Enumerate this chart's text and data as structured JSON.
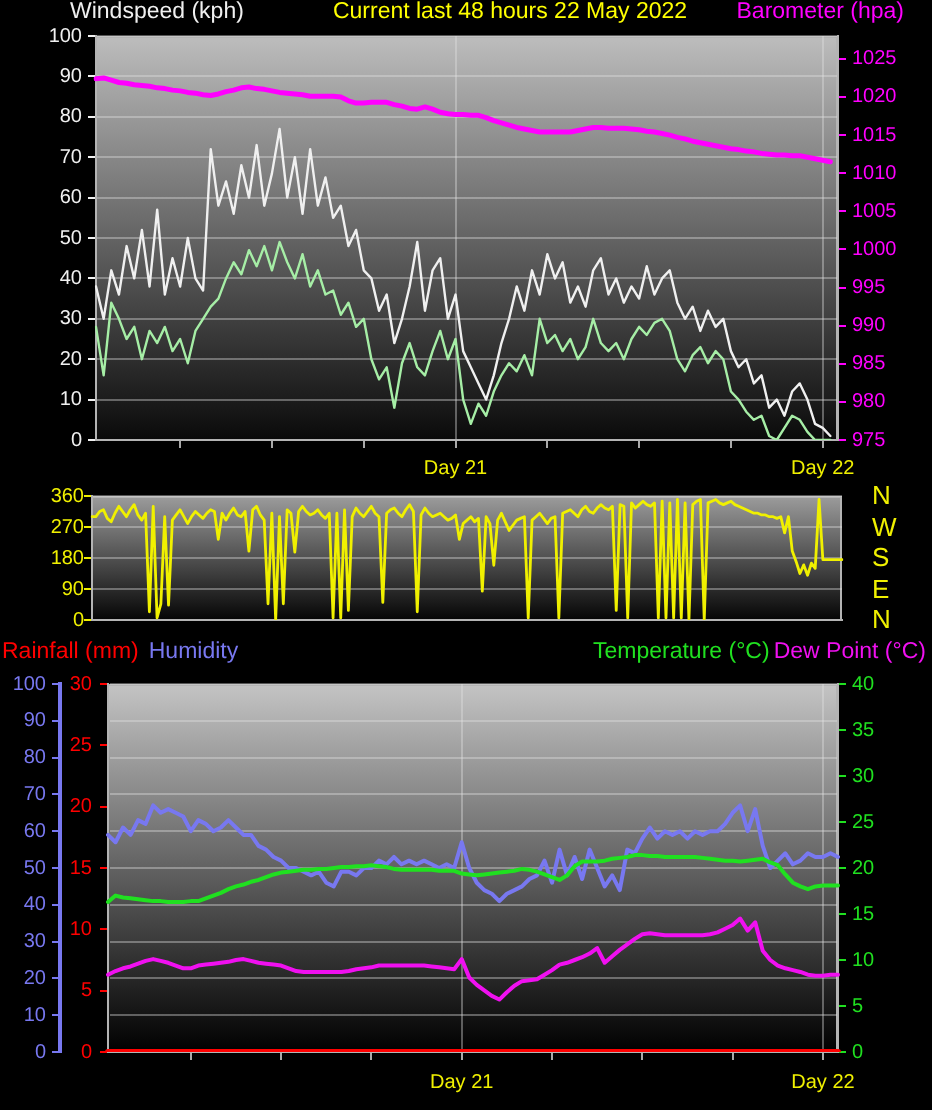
{
  "chart_data": [
    {
      "type": "line",
      "title": "Current last 48 hours 22 May 2022",
      "ylabel": "Windspeed (kph)",
      "y2label": "Barometer (hpa)",
      "categories": [
        null,
        null,
        null,
        null,
        null,
        null,
        null,
        null,
        null,
        null,
        null,
        null,
        null,
        null,
        null,
        null,
        null,
        null,
        null,
        null,
        null,
        null,
        null,
        null,
        null,
        null,
        null,
        null,
        null,
        null,
        null,
        null,
        null,
        null,
        null,
        null,
        null,
        null,
        null,
        null,
        null,
        null,
        null,
        null,
        null,
        null,
        null,
        "Day 21",
        null,
        null,
        null,
        null,
        null,
        null,
        null,
        null,
        null,
        null,
        null,
        null,
        null,
        null,
        null,
        null,
        null,
        null,
        null,
        null,
        null,
        null,
        null,
        null,
        null,
        null,
        null,
        null,
        null,
        null,
        null,
        null,
        null,
        null,
        null,
        null,
        null,
        null,
        null,
        null,
        null,
        null,
        null,
        null,
        null,
        null,
        null,
        "Day 22",
        null,
        null
      ],
      "ylim": [
        0,
        100
      ],
      "yticks": [
        0,
        10,
        20,
        30,
        40,
        50,
        60,
        70,
        80,
        90,
        100
      ],
      "y2lim": [
        975,
        1028
      ],
      "y2ticks": [
        975,
        980,
        985,
        990,
        995,
        1000,
        1005,
        1010,
        1015,
        1020,
        1025
      ],
      "grid": true,
      "series": [
        {
          "color": "#f0f0f0",
          "values": [
            38,
            30,
            42,
            36,
            48,
            40,
            52,
            38,
            57,
            36,
            45,
            38,
            50,
            40,
            37,
            72,
            58,
            64,
            56,
            68,
            60,
            73,
            58,
            66,
            77,
            60,
            70,
            56,
            72,
            58,
            65,
            55,
            58,
            48,
            52,
            42,
            40,
            32,
            36,
            24,
            30,
            38,
            49,
            32,
            42,
            45,
            30,
            36,
            22,
            18,
            14,
            10,
            16,
            24,
            30,
            38,
            32,
            42,
            36,
            46,
            40,
            44,
            34,
            38,
            33,
            42,
            45,
            36,
            40,
            34,
            38,
            35,
            43,
            36,
            40,
            42,
            34,
            30,
            33,
            27,
            32,
            28,
            30,
            22,
            18,
            20,
            14,
            16,
            8,
            10,
            6,
            12,
            14,
            10,
            4,
            3,
            1,
            null
          ]
        },
        {
          "color": "#a6eea6",
          "values": [
            28,
            16,
            34,
            30,
            25,
            28,
            20,
            27,
            24,
            28,
            22,
            25,
            19,
            27,
            30,
            33,
            35,
            40,
            44,
            41,
            47,
            43,
            48,
            42,
            49,
            44,
            40,
            46,
            38,
            42,
            36,
            37,
            31,
            34,
            28,
            30,
            20,
            15,
            18,
            8,
            19,
            24,
            18,
            16,
            22,
            27,
            20,
            25,
            10,
            4,
            9,
            6,
            12,
            16,
            19,
            17,
            21,
            16,
            30,
            24,
            26,
            22,
            25,
            20,
            23,
            30,
            24,
            22,
            24,
            20,
            25,
            28,
            26,
            29,
            30,
            27,
            20,
            17,
            21,
            23,
            19,
            22,
            20,
            12,
            10,
            7,
            5,
            6,
            1,
            0,
            3,
            6,
            5,
            2,
            0,
            0,
            0,
            null
          ]
        },
        {
          "color": "#ff00ff",
          "axis": "y2",
          "values": [
            1022.4,
            1022.5,
            1022.2,
            1021.9,
            1021.8,
            1021.6,
            1021.5,
            1021.4,
            1021.2,
            1021.1,
            1020.9,
            1020.8,
            1020.6,
            1020.5,
            1020.3,
            1020.2,
            1020.4,
            1020.7,
            1020.9,
            1021.2,
            1021.3,
            1021.1,
            1021.0,
            1020.8,
            1020.6,
            1020.5,
            1020.4,
            1020.3,
            1020.1,
            1020.1,
            1020.1,
            1020.1,
            1020.0,
            1019.5,
            1019.2,
            1019.2,
            1019.3,
            1019.3,
            1019.3,
            1019.0,
            1018.8,
            1018.5,
            1018.4,
            1018.7,
            1018.4,
            1018.0,
            1017.8,
            1017.7,
            1017.7,
            1017.6,
            1017.6,
            1017.3,
            1016.9,
            1016.6,
            1016.3,
            1016.0,
            1015.8,
            1015.6,
            1015.4,
            1015.4,
            1015.4,
            1015.4,
            1015.4,
            1015.6,
            1015.8,
            1016.0,
            1016.0,
            1015.9,
            1015.9,
            1015.9,
            1015.8,
            1015.7,
            1015.5,
            1015.4,
            1015.2,
            1015.0,
            1014.7,
            1014.5,
            1014.2,
            1014.0,
            1013.8,
            1013.6,
            1013.4,
            1013.2,
            1013.1,
            1012.9,
            1012.8,
            1012.6,
            1012.5,
            1012.4,
            1012.4,
            1012.3,
            1012.3,
            1012.1,
            1011.9,
            1011.7,
            1011.5,
            null
          ]
        }
      ]
    },
    {
      "type": "line",
      "annotations": [
        "N",
        "W",
        "S",
        "E",
        "N"
      ],
      "categories": [
        null,
        null,
        null,
        null,
        null,
        null,
        null,
        null,
        null,
        null,
        null,
        null,
        null,
        null,
        null,
        null,
        null,
        null,
        null,
        null,
        null,
        null,
        null,
        null,
        null,
        null,
        null,
        null,
        null,
        null,
        null,
        null,
        null,
        null,
        null,
        null,
        null,
        null,
        null,
        null,
        null,
        null,
        null,
        null,
        null,
        null,
        null,
        null,
        null,
        null,
        null,
        null,
        null,
        null,
        null,
        null,
        null,
        null,
        null,
        null,
        null,
        null,
        null,
        null,
        null,
        null,
        null,
        null,
        null,
        null,
        null,
        null,
        null,
        null,
        null,
        null,
        null,
        null,
        null,
        null,
        null,
        null,
        null,
        null,
        null,
        null,
        null,
        null,
        null,
        null,
        null,
        null,
        null,
        null,
        null,
        null,
        null,
        null,
        null,
        null,
        null,
        null,
        null,
        null,
        null,
        null,
        null,
        null,
        null,
        null,
        null,
        null,
        null,
        null,
        null,
        null,
        null,
        null,
        null,
        null,
        null,
        null,
        null,
        null,
        null,
        null,
        null,
        null,
        null,
        null,
        null,
        null,
        null,
        null,
        null,
        null,
        null,
        null,
        null,
        null,
        null,
        null,
        null,
        null,
        null,
        null,
        null,
        null,
        null,
        null,
        null,
        null,
        null,
        null,
        null,
        null,
        null,
        null,
        null,
        null,
        null,
        null,
        null,
        null,
        null,
        null,
        null,
        null,
        null,
        null,
        null,
        null,
        null,
        null,
        null,
        null,
        null,
        null,
        null,
        null,
        null,
        null,
        null,
        null,
        null,
        null,
        null,
        null,
        null,
        null,
        null,
        null,
        null,
        null,
        null,
        null,
        null
      ],
      "ylim": [
        0,
        360
      ],
      "yticks": [
        0,
        90,
        180,
        270,
        360
      ],
      "grid": "y",
      "series": [
        {
          "color": "#f0f000",
          "values": [
            300,
            300,
            315,
            320,
            295,
            285,
            310,
            330,
            315,
            300,
            320,
            335,
            305,
            290,
            310,
            24,
            330,
            6,
            47,
            300,
            43,
            290,
            305,
            320,
            300,
            280,
            300,
            315,
            305,
            295,
            310,
            320,
            315,
            234,
            310,
            290,
            310,
            325,
            305,
            300,
            315,
            200,
            320,
            330,
            305,
            290,
            47,
            310,
            0,
            300,
            47,
            320,
            310,
            197,
            315,
            330,
            315,
            305,
            310,
            320,
            305,
            295,
            310,
            6,
            310,
            6,
            320,
            28,
            300,
            325,
            310,
            300,
            315,
            330,
            310,
            300,
            51,
            310,
            320,
            325,
            310,
            300,
            320,
            335,
            315,
            24,
            305,
            325,
            310,
            300,
            305,
            310,
            300,
            290,
            295,
            305,
            234,
            280,
            290,
            300,
            285,
            295,
            84,
            300,
            280,
            159,
            290,
            310,
            285,
            260,
            275,
            290,
            295,
            300,
            6,
            290,
            300,
            310,
            295,
            280,
            295,
            300,
            6,
            310,
            315,
            320,
            310,
            300,
            320,
            330,
            315,
            310,
            325,
            335,
            325,
            320,
            330,
            28,
            335,
            330,
            6,
            340,
            325,
            335,
            345,
            335,
            330,
            340,
            6,
            345,
            6,
            340,
            6,
            350,
            6,
            340,
            0,
            335,
            345,
            350,
            0,
            340,
            345,
            350,
            340,
            335,
            340,
            345,
            335,
            330,
            325,
            320,
            315,
            310,
            310,
            305,
            305,
            300,
            300,
            295,
            300,
            253,
            300,
            200,
            170,
            135,
            160,
            130,
            165,
            150,
            350,
            175,
            175,
            175,
            175,
            175,
            175
          ]
        }
      ]
    },
    {
      "type": "line",
      "categories": [
        null,
        null,
        null,
        null,
        null,
        null,
        null,
        null,
        null,
        null,
        null,
        null,
        null,
        null,
        null,
        null,
        null,
        null,
        null,
        null,
        null,
        null,
        null,
        null,
        null,
        null,
        null,
        null,
        null,
        null,
        null,
        null,
        null,
        null,
        null,
        null,
        null,
        null,
        null,
        null,
        null,
        null,
        null,
        null,
        null,
        null,
        null,
        "Day 21",
        null,
        null,
        null,
        null,
        null,
        null,
        null,
        null,
        null,
        null,
        null,
        null,
        null,
        null,
        null,
        null,
        null,
        null,
        null,
        null,
        null,
        null,
        null,
        null,
        null,
        null,
        null,
        null,
        null,
        null,
        null,
        null,
        null,
        null,
        null,
        null,
        null,
        null,
        null,
        null,
        null,
        null,
        null,
        null,
        null,
        null,
        null,
        "Day 22",
        null,
        null
      ],
      "ylim": [
        0,
        100
      ],
      "yticks": [
        0,
        10,
        20,
        30,
        40,
        50,
        60,
        70,
        80,
        90,
        100
      ],
      "y2lim": [
        0,
        30
      ],
      "y2ticks": [
        0,
        5,
        10,
        15,
        20,
        25,
        30
      ],
      "y3lim": [
        0,
        40
      ],
      "y3ticks": [
        0,
        5,
        10,
        15,
        20,
        25,
        30,
        35,
        40
      ],
      "grid": true,
      "legend": "top",
      "series": [
        {
          "name": "Rainfall (mm)",
          "color": "#ff0000",
          "axis": "y2",
          "values": [
            0,
            0,
            0,
            0,
            0,
            0,
            0,
            0,
            0,
            0,
            0,
            0,
            0,
            0,
            0,
            0,
            0,
            0,
            0,
            0,
            0,
            0,
            0,
            0,
            0,
            0,
            0,
            0,
            0,
            0,
            0,
            0,
            0,
            0,
            0,
            0,
            0,
            0,
            0,
            0,
            0,
            0,
            0,
            0,
            0,
            0,
            0,
            0,
            0,
            0,
            0,
            0,
            0,
            0,
            0,
            0,
            0,
            0,
            0,
            0,
            0,
            0,
            0,
            0,
            0,
            0,
            0,
            0,
            0,
            0,
            0,
            0,
            0,
            0,
            0,
            0,
            0,
            0,
            0,
            0,
            0,
            0,
            0,
            0,
            0,
            0,
            0,
            0,
            0,
            0,
            0,
            0,
            0,
            0,
            0,
            0,
            0,
            0
          ]
        },
        {
          "name": "Humidity",
          "color": "#7878f0",
          "values": [
            59,
            57,
            61,
            59,
            63,
            62,
            67,
            65,
            66,
            65,
            64,
            60,
            63,
            62,
            60,
            61,
            63,
            61,
            59,
            59,
            56,
            55,
            53,
            52,
            50,
            50,
            49,
            48,
            49,
            46,
            45,
            49,
            49,
            48,
            50,
            50,
            52,
            51,
            53,
            51,
            52,
            51,
            52,
            51,
            50,
            51,
            50,
            57,
            50,
            46,
            44,
            43,
            41,
            43,
            44,
            45,
            47,
            48,
            52,
            46,
            55,
            48,
            53,
            47,
            55,
            50,
            45,
            48,
            44,
            55,
            54,
            58,
            61,
            58,
            60,
            59,
            60,
            58,
            60,
            59,
            60,
            60,
            62,
            65,
            67,
            60,
            66,
            56,
            50,
            52,
            54,
            51,
            52,
            54,
            53,
            53,
            54,
            53
          ]
        },
        {
          "name": "Temperature (°C)",
          "color": "#20e020",
          "axis": "y3",
          "values": [
            16.3,
            17,
            16.8,
            16.7,
            16.6,
            16.5,
            16.4,
            16.4,
            16.3,
            16.3,
            16.3,
            16.4,
            16.4,
            16.7,
            17,
            17.3,
            17.7,
            18,
            18.2,
            18.5,
            18.7,
            19,
            19.3,
            19.5,
            19.6,
            19.7,
            19.8,
            19.8,
            19.9,
            19.9,
            20,
            20.1,
            20.1,
            20.2,
            20.2,
            20.3,
            20.2,
            20.1,
            19.9,
            19.8,
            19.8,
            19.8,
            19.8,
            19.8,
            19.7,
            19.7,
            19.7,
            19.4,
            19.3,
            19.2,
            19.3,
            19.4,
            19.5,
            19.6,
            19.7,
            19.9,
            19.8,
            19.6,
            19.3,
            19,
            18.7,
            19.2,
            20.2,
            20.7,
            20.7,
            20.7,
            20.8,
            21,
            21.1,
            21.2,
            21.4,
            21.4,
            21.3,
            21.3,
            21.2,
            21.2,
            21.2,
            21.2,
            21.2,
            21.1,
            21,
            20.9,
            20.8,
            20.8,
            20.7,
            20.8,
            20.9,
            21,
            20.6,
            20.3,
            19.3,
            18.4,
            18,
            17.7,
            18,
            18.1,
            18.1,
            18.1
          ]
        },
        {
          "name": "Dew Point (°C)",
          "color": "#f010f0",
          "axis": "y3",
          "values": [
            8.4,
            8.8,
            9.1,
            9.3,
            9.6,
            9.9,
            10.1,
            9.9,
            9.7,
            9.4,
            9.1,
            9.1,
            9.4,
            9.5,
            9.6,
            9.7,
            9.8,
            10,
            10.1,
            9.9,
            9.7,
            9.6,
            9.5,
            9.4,
            9.1,
            8.8,
            8.7,
            8.7,
            8.7,
            8.7,
            8.7,
            8.7,
            8.8,
            9,
            9.1,
            9.2,
            9.4,
            9.4,
            9.4,
            9.4,
            9.4,
            9.4,
            9.4,
            9.3,
            9.2,
            9.1,
            9,
            10.1,
            8.1,
            7.3,
            6.7,
            6.1,
            5.7,
            6.5,
            7.2,
            7.7,
            7.8,
            7.9,
            8.4,
            8.9,
            9.5,
            9.7,
            10,
            10.3,
            10.7,
            11.3,
            9.7,
            10.4,
            11.1,
            11.7,
            12.3,
            12.8,
            12.9,
            12.8,
            12.7,
            12.7,
            12.7,
            12.7,
            12.7,
            12.7,
            12.8,
            13,
            13.4,
            13.8,
            14.5,
            13.2,
            14.1,
            11,
            10,
            9.4,
            9.1,
            8.9,
            8.7,
            8.4,
            8.3,
            8.3,
            8.4,
            8.4
          ]
        }
      ]
    }
  ]
}
